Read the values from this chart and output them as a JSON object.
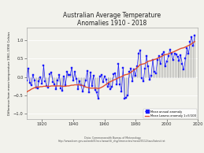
{
  "title": "Australian Average Temperature\nAnomalies 1910 - 2018",
  "ylabel": "Difference from mean temperature 1961-1990 Celsius",
  "xlabel_note": "Data: Commonwealth Bureau of Meteorology\nhttp://www.bom.gov.au/web31/ncc/www/cli_chg/timeseries/mean/0112/aus/latest.txt",
  "xlim": [
    1910,
    2020
  ],
  "ylim": [
    -1.15,
    1.35
  ],
  "yticks": [
    -1.0,
    -0.5,
    0.0,
    0.5,
    1.0
  ],
  "xticks": [
    1920,
    1940,
    1960,
    1980,
    2000,
    2020
  ],
  "bg_color": "#f2f2ec",
  "grid_color": "white",
  "legend_labels": [
    "Mean annual anomaly",
    "Mean Lowess anomaly 1=5/100"
  ],
  "years": [
    1910,
    1911,
    1912,
    1913,
    1914,
    1915,
    1916,
    1917,
    1918,
    1919,
    1920,
    1921,
    1922,
    1923,
    1924,
    1925,
    1926,
    1927,
    1928,
    1929,
    1930,
    1931,
    1932,
    1933,
    1934,
    1935,
    1936,
    1937,
    1938,
    1939,
    1940,
    1941,
    1942,
    1943,
    1944,
    1945,
    1946,
    1947,
    1948,
    1949,
    1950,
    1951,
    1952,
    1953,
    1954,
    1955,
    1956,
    1957,
    1958,
    1959,
    1960,
    1961,
    1962,
    1963,
    1964,
    1965,
    1966,
    1967,
    1968,
    1969,
    1970,
    1971,
    1972,
    1973,
    1974,
    1975,
    1976,
    1977,
    1978,
    1979,
    1980,
    1981,
    1982,
    1983,
    1984,
    1985,
    1986,
    1987,
    1988,
    1989,
    1990,
    1991,
    1992,
    1993,
    1994,
    1995,
    1996,
    1997,
    1998,
    1999,
    2000,
    2001,
    2002,
    2003,
    2004,
    2005,
    2006,
    2007,
    2008,
    2009,
    2010,
    2011,
    2012,
    2013,
    2014,
    2015,
    2016,
    2017,
    2018
  ],
  "anomalies": [
    -0.09,
    0.23,
    -0.15,
    -0.22,
    0.06,
    -0.08,
    -0.28,
    -0.31,
    -0.11,
    -0.01,
    -0.18,
    0.31,
    -0.12,
    -0.24,
    -0.28,
    0.09,
    0.13,
    -0.13,
    -0.19,
    -0.33,
    -0.1,
    0.05,
    -0.31,
    -0.36,
    0.01,
    -0.23,
    0.14,
    0.05,
    0.06,
    0.26,
    -0.1,
    0.14,
    -0.05,
    -0.32,
    -0.11,
    -0.22,
    -0.4,
    -0.24,
    -0.08,
    0.16,
    -0.41,
    0.12,
    -0.24,
    0.03,
    -0.34,
    -0.42,
    -0.58,
    0.01,
    0.05,
    -0.13,
    0.01,
    -0.07,
    -0.27,
    -0.17,
    -0.33,
    -0.26,
    0.08,
    0.11,
    -0.2,
    0.37,
    -0.19,
    -0.39,
    0.25,
    -0.58,
    -0.56,
    -0.49,
    0.14,
    0.23,
    -0.11,
    0.2,
    0.04,
    0.29,
    0.65,
    0.73,
    -0.02,
    -0.11,
    0.23,
    0.58,
    0.29,
    -0.07,
    0.04,
    0.46,
    0.15,
    0.1,
    0.46,
    0.58,
    0.35,
    0.62,
    0.68,
    0.3,
    0.43,
    0.57,
    0.74,
    0.63,
    0.47,
    0.64,
    0.61,
    0.55,
    0.45,
    0.59,
    0.36,
    0.2,
    0.5,
    0.79,
    0.65,
    0.96,
    1.09,
    0.85,
    1.14
  ],
  "lowess": [
    -0.41,
    -0.38,
    -0.36,
    -0.33,
    -0.31,
    -0.29,
    -0.28,
    -0.27,
    -0.27,
    -0.26,
    -0.26,
    -0.25,
    -0.25,
    -0.25,
    -0.25,
    -0.25,
    -0.24,
    -0.24,
    -0.24,
    -0.24,
    -0.24,
    -0.24,
    -0.24,
    -0.25,
    -0.25,
    -0.25,
    -0.24,
    -0.24,
    -0.23,
    -0.22,
    -0.22,
    -0.21,
    -0.21,
    -0.21,
    -0.21,
    -0.22,
    -0.23,
    -0.25,
    -0.27,
    -0.28,
    -0.29,
    -0.3,
    -0.3,
    -0.3,
    -0.3,
    -0.3,
    -0.31,
    -0.3,
    -0.28,
    -0.26,
    -0.23,
    -0.2,
    -0.17,
    -0.14,
    -0.12,
    -0.1,
    -0.08,
    -0.06,
    -0.04,
    -0.02,
    0.0,
    0.01,
    0.04,
    0.06,
    0.07,
    0.08,
    0.1,
    0.13,
    0.16,
    0.19,
    0.22,
    0.26,
    0.3,
    0.34,
    0.35,
    0.36,
    0.37,
    0.4,
    0.43,
    0.44,
    0.45,
    0.47,
    0.48,
    0.49,
    0.51,
    0.53,
    0.55,
    0.57,
    0.6,
    0.61,
    0.62,
    0.63,
    0.65,
    0.67,
    0.68,
    0.7,
    0.72,
    0.74,
    0.76,
    0.78,
    0.79,
    0.8,
    0.82,
    0.84,
    0.86,
    0.88,
    0.91,
    0.94,
    0.97
  ]
}
